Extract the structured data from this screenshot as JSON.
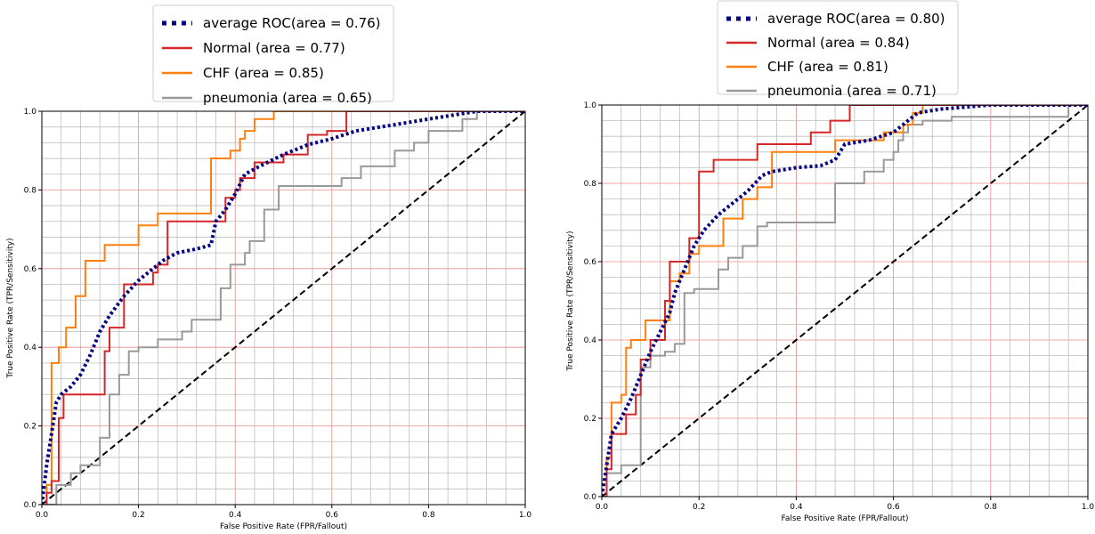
{
  "chart_data": [
    {
      "type": "line",
      "xlabel": "False Positive Rate (FPR/Fallout)",
      "ylabel": "True Positive Rate (TPR/Sensitivity)",
      "xlim": [
        0,
        1.0
      ],
      "ylim": [
        0,
        1.0
      ],
      "xticks": [
        "0.0",
        "0.2",
        "0.4",
        "0.6",
        "0.8",
        "1.0"
      ],
      "yticks": [
        "0.0",
        "0.2",
        "0.4",
        "0.6",
        "0.8",
        "1.0"
      ],
      "grid": true,
      "legend_position": "top",
      "series": [
        {
          "name": "average ROC(area = 0.76)",
          "color": "#000080",
          "style": "dotted",
          "x": [
            0,
            0.01,
            0.02,
            0.03,
            0.04,
            0.06,
            0.08,
            0.1,
            0.12,
            0.14,
            0.17,
            0.2,
            0.22,
            0.25,
            0.28,
            0.3,
            0.32,
            0.35,
            0.36,
            0.38,
            0.4,
            0.42,
            0.45,
            0.5,
            0.55,
            0.6,
            0.65,
            0.7,
            0.75,
            0.8,
            0.85,
            0.9,
            0.95,
            1.0
          ],
          "y": [
            0,
            0.1,
            0.18,
            0.26,
            0.28,
            0.3,
            0.33,
            0.38,
            0.44,
            0.48,
            0.53,
            0.57,
            0.59,
            0.62,
            0.64,
            0.645,
            0.65,
            0.66,
            0.72,
            0.75,
            0.79,
            0.84,
            0.86,
            0.89,
            0.915,
            0.93,
            0.95,
            0.96,
            0.97,
            0.98,
            0.99,
            1.0,
            1.0,
            1.0
          ]
        },
        {
          "name": "Normal (area = 0.77)",
          "color": "#d62728",
          "style": "solid",
          "x": [
            0,
            0.01,
            0.01,
            0.02,
            0.02,
            0.035,
            0.035,
            0.045,
            0.045,
            0.13,
            0.13,
            0.14,
            0.14,
            0.17,
            0.17,
            0.23,
            0.23,
            0.24,
            0.24,
            0.26,
            0.26,
            0.38,
            0.38,
            0.4,
            0.4,
            0.41,
            0.41,
            0.44,
            0.44,
            0.5,
            0.5,
            0.55,
            0.55,
            0.59,
            0.59,
            0.63,
            0.63,
            1.0
          ],
          "y": [
            0,
            0,
            0.03,
            0.03,
            0.06,
            0.06,
            0.22,
            0.22,
            0.28,
            0.28,
            0.39,
            0.39,
            0.45,
            0.45,
            0.56,
            0.56,
            0.59,
            0.59,
            0.61,
            0.61,
            0.72,
            0.72,
            0.78,
            0.78,
            0.8,
            0.8,
            0.83,
            0.83,
            0.87,
            0.87,
            0.89,
            0.89,
            0.94,
            0.94,
            0.95,
            0.95,
            1.0,
            1.0
          ]
        },
        {
          "name": "CHF (area = 0.85)",
          "color": "#ff7f0e",
          "style": "solid",
          "x": [
            0,
            0.01,
            0.01,
            0.02,
            0.02,
            0.035,
            0.035,
            0.05,
            0.05,
            0.07,
            0.07,
            0.09,
            0.09,
            0.13,
            0.13,
            0.2,
            0.2,
            0.24,
            0.24,
            0.35,
            0.35,
            0.39,
            0.39,
            0.41,
            0.41,
            0.42,
            0.42,
            0.44,
            0.44,
            0.48,
            0.48,
            1.0
          ],
          "y": [
            0,
            0,
            0.05,
            0.05,
            0.36,
            0.36,
            0.4,
            0.4,
            0.45,
            0.45,
            0.53,
            0.53,
            0.62,
            0.62,
            0.66,
            0.66,
            0.71,
            0.71,
            0.74,
            0.74,
            0.88,
            0.88,
            0.9,
            0.9,
            0.93,
            0.93,
            0.95,
            0.95,
            0.98,
            0.98,
            1.0,
            1.0
          ]
        },
        {
          "name": "pneumonia (area = 0.65)",
          "color": "#999999",
          "style": "solid",
          "x": [
            0,
            0.03,
            0.03,
            0.06,
            0.06,
            0.08,
            0.08,
            0.12,
            0.12,
            0.14,
            0.14,
            0.16,
            0.16,
            0.18,
            0.18,
            0.2,
            0.2,
            0.24,
            0.24,
            0.29,
            0.29,
            0.31,
            0.31,
            0.37,
            0.37,
            0.39,
            0.39,
            0.42,
            0.42,
            0.43,
            0.43,
            0.46,
            0.46,
            0.49,
            0.49,
            0.62,
            0.62,
            0.66,
            0.66,
            0.73,
            0.73,
            0.77,
            0.77,
            0.8,
            0.8,
            0.87,
            0.87,
            0.9,
            0.9,
            1.0
          ],
          "y": [
            0,
            0,
            0.05,
            0.05,
            0.08,
            0.08,
            0.1,
            0.1,
            0.17,
            0.17,
            0.28,
            0.28,
            0.33,
            0.33,
            0.39,
            0.39,
            0.4,
            0.4,
            0.42,
            0.42,
            0.44,
            0.44,
            0.47,
            0.47,
            0.55,
            0.55,
            0.61,
            0.61,
            0.64,
            0.64,
            0.67,
            0.67,
            0.75,
            0.75,
            0.81,
            0.81,
            0.83,
            0.83,
            0.86,
            0.86,
            0.9,
            0.9,
            0.92,
            0.92,
            0.95,
            0.95,
            0.98,
            0.98,
            1.0,
            1.0
          ]
        },
        {
          "name": "",
          "color": "#000000",
          "style": "dashed",
          "x": [
            0,
            1.0
          ],
          "y": [
            0,
            1.0
          ]
        }
      ]
    },
    {
      "type": "line",
      "xlabel": "False Positive Rate (FPR/Fallout)",
      "ylabel": "True Positive Rate (TPR/Sensitivity)",
      "xlim": [
        0,
        1.0
      ],
      "ylim": [
        0,
        1.0
      ],
      "xticks": [
        "0.0",
        "0.2",
        "0.4",
        "0.6",
        "0.8",
        "1.0"
      ],
      "yticks": [
        "0.0",
        "0.2",
        "0.4",
        "0.6",
        "0.8",
        "1.0"
      ],
      "grid": true,
      "legend_position": "top",
      "series": [
        {
          "name": "average ROC(area = 0.80)",
          "color": "#000080",
          "style": "dotted",
          "x": [
            0,
            0.01,
            0.02,
            0.04,
            0.06,
            0.08,
            0.1,
            0.12,
            0.14,
            0.15,
            0.17,
            0.19,
            0.21,
            0.24,
            0.27,
            0.3,
            0.33,
            0.35,
            0.4,
            0.45,
            0.48,
            0.5,
            0.55,
            0.6,
            0.62,
            0.65,
            0.7,
            0.8,
            0.9,
            1.0
          ],
          "y": [
            0,
            0.08,
            0.16,
            0.2,
            0.25,
            0.31,
            0.37,
            0.42,
            0.47,
            0.52,
            0.58,
            0.64,
            0.68,
            0.72,
            0.75,
            0.78,
            0.82,
            0.83,
            0.84,
            0.845,
            0.86,
            0.9,
            0.91,
            0.93,
            0.95,
            0.98,
            0.99,
            1.0,
            1.0,
            1.0
          ],
          "note": ""
        },
        {
          "name": "Normal (area = 0.84)",
          "color": "#d62728",
          "style": "solid",
          "x": [
            0,
            0.01,
            0.01,
            0.02,
            0.02,
            0.05,
            0.05,
            0.07,
            0.07,
            0.08,
            0.08,
            0.1,
            0.1,
            0.13,
            0.13,
            0.14,
            0.14,
            0.18,
            0.18,
            0.2,
            0.2,
            0.23,
            0.23,
            0.32,
            0.32,
            0.43,
            0.43,
            0.47,
            0.47,
            0.51,
            0.51,
            0.66,
            0.66,
            1.0
          ],
          "y": [
            0,
            0,
            0.07,
            0.07,
            0.16,
            0.16,
            0.21,
            0.21,
            0.26,
            0.26,
            0.35,
            0.35,
            0.4,
            0.4,
            0.5,
            0.5,
            0.6,
            0.6,
            0.66,
            0.66,
            0.83,
            0.83,
            0.86,
            0.86,
            0.9,
            0.9,
            0.93,
            0.93,
            0.96,
            0.96,
            1.0,
            1.0,
            1.0,
            1.0
          ]
        },
        {
          "name": "CHF (area = 0.81)",
          "color": "#ff7f0e",
          "style": "solid",
          "x": [
            0,
            0.01,
            0.01,
            0.02,
            0.02,
            0.04,
            0.04,
            0.05,
            0.05,
            0.06,
            0.06,
            0.09,
            0.09,
            0.14,
            0.14,
            0.16,
            0.16,
            0.18,
            0.18,
            0.2,
            0.2,
            0.25,
            0.25,
            0.29,
            0.29,
            0.32,
            0.32,
            0.35,
            0.35,
            0.48,
            0.48,
            0.58,
            0.58,
            0.62,
            0.62,
            0.64,
            0.64,
            0.66,
            0.66,
            1.0
          ],
          "y": [
            0,
            0,
            0.1,
            0.1,
            0.24,
            0.24,
            0.26,
            0.26,
            0.38,
            0.38,
            0.4,
            0.4,
            0.45,
            0.45,
            0.55,
            0.55,
            0.57,
            0.57,
            0.62,
            0.62,
            0.64,
            0.64,
            0.71,
            0.71,
            0.76,
            0.76,
            0.79,
            0.79,
            0.88,
            0.88,
            0.91,
            0.91,
            0.93,
            0.93,
            0.95,
            0.95,
            0.98,
            0.98,
            1.0,
            1.0
          ]
        },
        {
          "name": "pneumonia (area = 0.71)",
          "color": "#999999",
          "style": "solid",
          "x": [
            0,
            0.01,
            0.01,
            0.04,
            0.04,
            0.08,
            0.08,
            0.1,
            0.1,
            0.13,
            0.13,
            0.15,
            0.15,
            0.17,
            0.17,
            0.19,
            0.19,
            0.24,
            0.24,
            0.26,
            0.26,
            0.29,
            0.29,
            0.32,
            0.32,
            0.34,
            0.34,
            0.48,
            0.48,
            0.54,
            0.54,
            0.58,
            0.58,
            0.6,
            0.6,
            0.61,
            0.61,
            0.62,
            0.62,
            0.63,
            0.63,
            0.66,
            0.66,
            0.72,
            0.72,
            0.96,
            0.96,
            1.0
          ],
          "y": [
            0,
            0,
            0.06,
            0.06,
            0.08,
            0.08,
            0.33,
            0.33,
            0.36,
            0.36,
            0.37,
            0.37,
            0.39,
            0.39,
            0.52,
            0.52,
            0.53,
            0.53,
            0.58,
            0.58,
            0.61,
            0.61,
            0.64,
            0.64,
            0.69,
            0.69,
            0.7,
            0.7,
            0.8,
            0.8,
            0.83,
            0.83,
            0.86,
            0.86,
            0.88,
            0.88,
            0.91,
            0.91,
            0.93,
            0.93,
            0.95,
            0.95,
            0.96,
            0.96,
            0.97,
            0.97,
            1.0,
            1.0
          ]
        },
        {
          "name": "",
          "color": "#000000",
          "style": "dashed",
          "x": [
            0,
            1.0
          ],
          "y": [
            0,
            1.0
          ]
        }
      ]
    }
  ]
}
